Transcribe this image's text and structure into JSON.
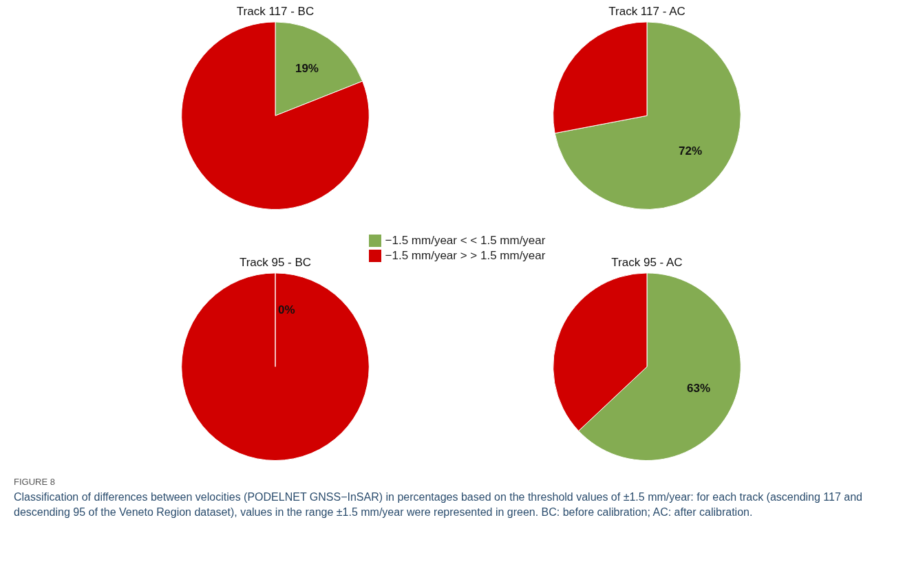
{
  "chart_data": [
    {
      "type": "pie",
      "title": "Track 117 - BC",
      "categories": [
        "−1.5 mm/year < < 1.5 mm/year",
        "−1.5 mm/year > > 1.5 mm/year"
      ],
      "values": [
        19,
        81
      ],
      "colors": [
        "#84ac52",
        "#d10000"
      ],
      "value_labels": [
        "19%",
        null
      ],
      "legend": "bottom"
    },
    {
      "type": "pie",
      "title": "Track 117 - AC",
      "categories": [
        null,
        null
      ],
      "values": [
        72,
        28
      ],
      "colors": [
        "#84ac52",
        "#d10000"
      ],
      "value_labels": [
        "72%",
        null
      ]
    },
    {
      "type": "pie",
      "title": "Track 95 - BC",
      "categories": [
        null,
        null
      ],
      "values": [
        0,
        100
      ],
      "colors": [
        "#84ac52",
        "#d10000"
      ],
      "value_labels": [
        "0%",
        null
      ]
    },
    {
      "type": "pie",
      "title": "Track 95 - AC",
      "categories": [
        null,
        null
      ],
      "values": [
        63,
        37
      ],
      "colors": [
        "#84ac52",
        "#d10000"
      ],
      "value_labels": [
        "63%",
        null
      ],
      "annotations": [
        "FIGURE 8",
        "Classification of differences between velocities (PODELNET GNSS−InSAR) in percentages based on the threshold values of ±1.5 mm/year: for each track (ascending 117 and descending 95 of the Veneto Region dataset), values in the range ±1.5 mm/year were represented in green. BC: before calibration; AC: after calibration."
      ]
    }
  ]
}
